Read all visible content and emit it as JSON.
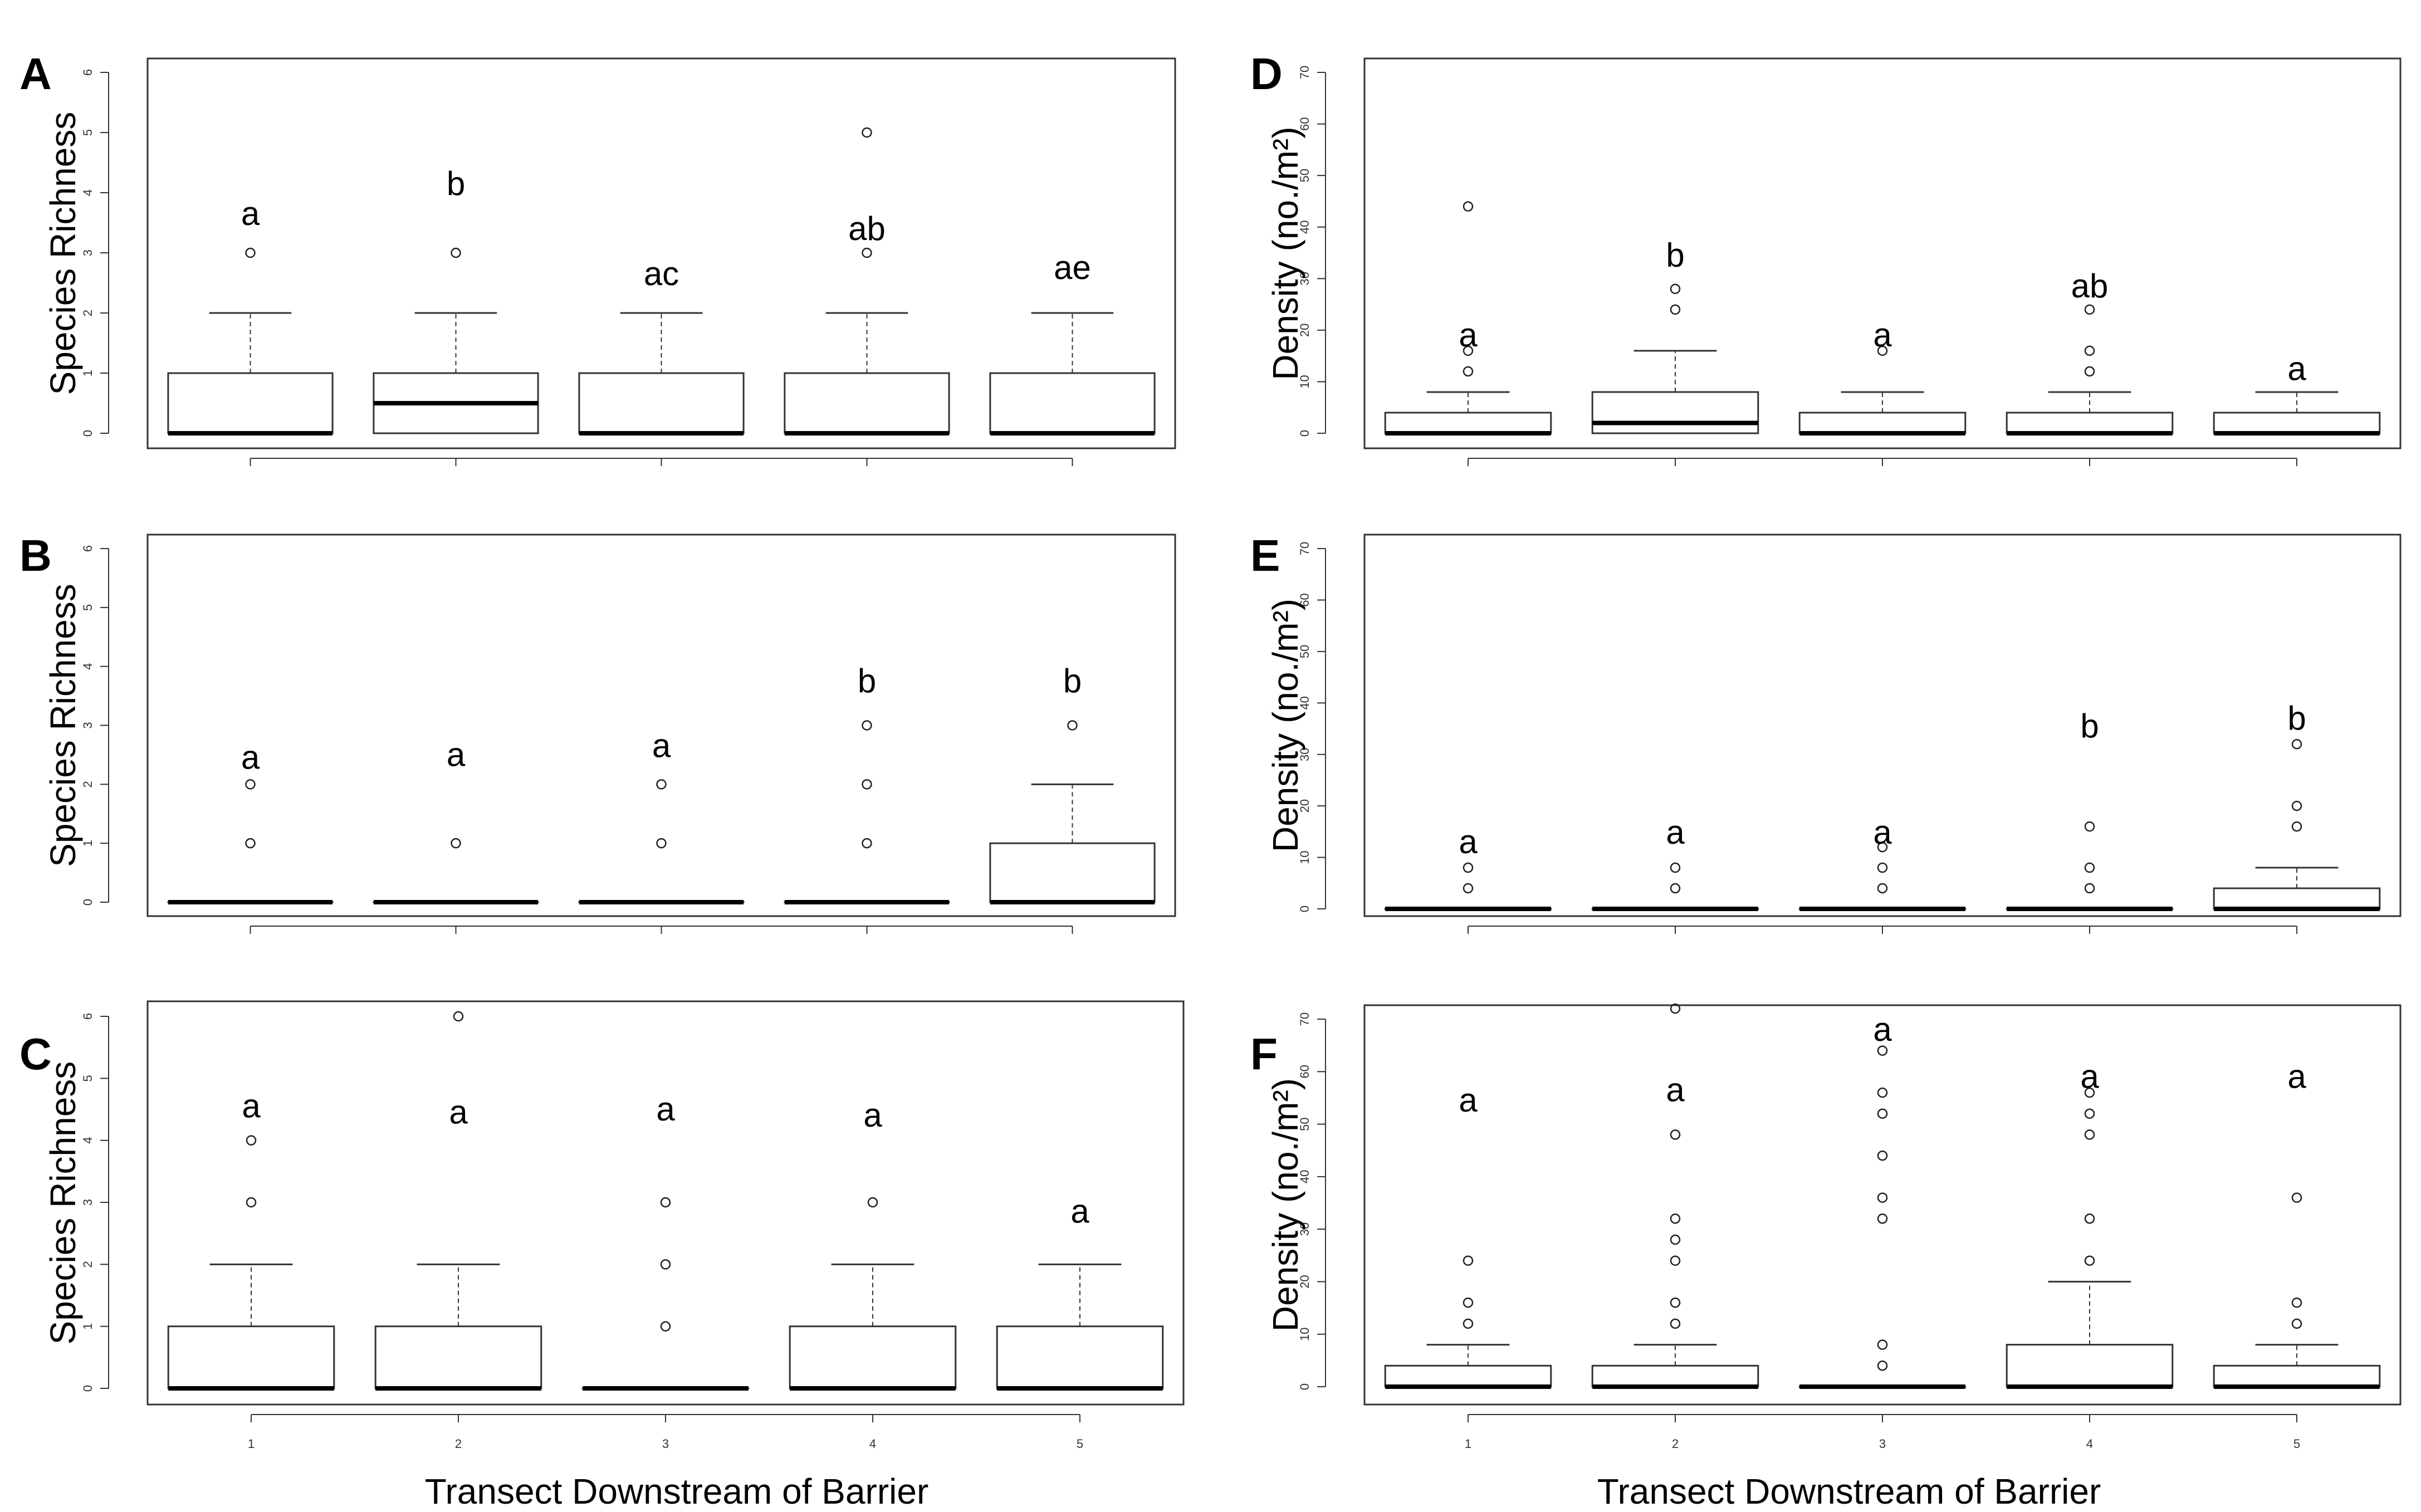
{
  "figure": {
    "x_axis_label_left": "Transect Downstream of Barrier",
    "x_axis_label_right": "Transect Downstream of Barrier"
  },
  "chart_data": [
    {
      "panel": "A",
      "type": "box",
      "ylabel": "Species Richness",
      "xlabel": "",
      "ylim": [
        0,
        6
      ],
      "yticks": [
        0,
        1,
        2,
        3,
        4,
        5,
        6
      ],
      "categories": [
        "1",
        "2",
        "3",
        "4",
        "5"
      ],
      "show_xtick_labels": false,
      "boxes": [
        {
          "min": 0,
          "q1": 0,
          "median": 0,
          "q3": 1,
          "max": 2,
          "outliers": [
            3
          ],
          "letter": "a",
          "letter_y": 3.65
        },
        {
          "min": 0,
          "q1": 0,
          "median": 0.5,
          "q3": 1,
          "max": 2,
          "outliers": [
            3
          ],
          "letter": "b",
          "letter_y": 4.15
        },
        {
          "min": 0,
          "q1": 0,
          "median": 0,
          "q3": 1,
          "max": 2,
          "outliers": [],
          "letter": "ac",
          "letter_y": 2.65
        },
        {
          "min": 0,
          "q1": 0,
          "median": 0,
          "q3": 1,
          "max": 2,
          "outliers": [
            3,
            5
          ],
          "letter": "ab",
          "letter_y": 3.4
        },
        {
          "min": 0,
          "q1": 0,
          "median": 0,
          "q3": 1,
          "max": 2,
          "outliers": [],
          "letter": "ae",
          "letter_y": 2.75
        }
      ]
    },
    {
      "panel": "B",
      "type": "box",
      "ylabel": "Species Richness",
      "xlabel": "",
      "ylim": [
        0,
        6
      ],
      "yticks": [
        0,
        1,
        2,
        3,
        4,
        5,
        6
      ],
      "categories": [
        "1",
        "2",
        "3",
        "4",
        "5"
      ],
      "show_xtick_labels": false,
      "boxes": [
        {
          "min": 0,
          "q1": 0,
          "median": 0,
          "q3": 0,
          "max": 0,
          "outliers": [
            1,
            2
          ],
          "letter": "a",
          "letter_y": 2.45
        },
        {
          "min": 0,
          "q1": 0,
          "median": 0,
          "q3": 0,
          "max": 0,
          "outliers": [
            1
          ],
          "letter": "a",
          "letter_y": 2.5
        },
        {
          "min": 0,
          "q1": 0,
          "median": 0,
          "q3": 0,
          "max": 0,
          "outliers": [
            1,
            2
          ],
          "letter": "a",
          "letter_y": 2.65
        },
        {
          "min": 0,
          "q1": 0,
          "median": 0,
          "q3": 0,
          "max": 0,
          "outliers": [
            1,
            2,
            3
          ],
          "letter": "b",
          "letter_y": 3.75
        },
        {
          "min": 0,
          "q1": 0,
          "median": 0,
          "q3": 1,
          "max": 2,
          "outliers": [
            3
          ],
          "letter": "b",
          "letter_y": 3.75
        }
      ]
    },
    {
      "panel": "C",
      "type": "box",
      "ylabel": "Species Richness",
      "xlabel": "",
      "ylim": [
        0,
        6
      ],
      "yticks": [
        0,
        1,
        2,
        3,
        4,
        5,
        6
      ],
      "categories": [
        "1",
        "2",
        "3",
        "4",
        "5"
      ],
      "show_xtick_labels": true,
      "boxes": [
        {
          "min": 0,
          "q1": 0,
          "median": 0,
          "q3": 1,
          "max": 2,
          "outliers": [
            3,
            4
          ],
          "letter": "a",
          "letter_y": 4.55
        },
        {
          "min": 0,
          "q1": 0,
          "median": 0,
          "q3": 1,
          "max": 2,
          "outliers": [
            6
          ],
          "letter": "a",
          "letter_y": 4.45
        },
        {
          "min": 0,
          "q1": 0,
          "median": 0,
          "q3": 0,
          "max": 0,
          "outliers": [
            1,
            2,
            3
          ],
          "letter": "a",
          "letter_y": 4.5
        },
        {
          "min": 0,
          "q1": 0,
          "median": 0,
          "q3": 1,
          "max": 2,
          "outliers": [
            3
          ],
          "letter": "a",
          "letter_y": 4.4
        },
        {
          "min": 0,
          "q1": 0,
          "median": 0,
          "q3": 1,
          "max": 2,
          "outliers": [],
          "letter": "a",
          "letter_y": 2.85
        }
      ]
    },
    {
      "panel": "D",
      "type": "box",
      "ylabel": "Density (no./m²)",
      "xlabel": "",
      "ylim": [
        0,
        70
      ],
      "yticks": [
        0,
        10,
        20,
        30,
        40,
        50,
        60,
        70
      ],
      "categories": [
        "1",
        "2",
        "3",
        "4",
        "5"
      ],
      "show_xtick_labels": false,
      "boxes": [
        {
          "min": 0,
          "q1": 0,
          "median": 0,
          "q3": 4,
          "max": 8,
          "outliers": [
            12,
            16,
            44
          ],
          "letter": "a",
          "letter_y": 19
        },
        {
          "min": 0,
          "q1": 0,
          "median": 2,
          "q3": 8,
          "max": 16,
          "outliers": [
            24,
            28
          ],
          "letter": "b",
          "letter_y": 34.5
        },
        {
          "min": 0,
          "q1": 0,
          "median": 0,
          "q3": 4,
          "max": 8,
          "outliers": [
            16
          ],
          "letter": "a",
          "letter_y": 19
        },
        {
          "min": 0,
          "q1": 0,
          "median": 0,
          "q3": 4,
          "max": 8,
          "outliers": [
            12,
            16,
            24
          ],
          "letter": "ab",
          "letter_y": 28.5
        },
        {
          "min": 0,
          "q1": 0,
          "median": 0,
          "q3": 4,
          "max": 8,
          "outliers": [],
          "letter": "a",
          "letter_y": 12.5
        }
      ]
    },
    {
      "panel": "E",
      "type": "box",
      "ylabel": "Density (no./m²)",
      "xlabel": "",
      "ylim": [
        0,
        70
      ],
      "yticks": [
        0,
        10,
        20,
        30,
        40,
        50,
        60,
        70
      ],
      "categories": [
        "1",
        "2",
        "3",
        "4",
        "5"
      ],
      "show_xtick_labels": false,
      "boxes": [
        {
          "min": 0,
          "q1": 0,
          "median": 0,
          "q3": 0,
          "max": 0,
          "outliers": [
            4,
            8
          ],
          "letter": "a",
          "letter_y": 13
        },
        {
          "min": 0,
          "q1": 0,
          "median": 0,
          "q3": 0,
          "max": 0,
          "outliers": [
            4,
            8
          ],
          "letter": "a",
          "letter_y": 14.8
        },
        {
          "min": 0,
          "q1": 0,
          "median": 0,
          "q3": 0,
          "max": 0,
          "outliers": [
            4,
            8,
            12
          ],
          "letter": "a",
          "letter_y": 14.8
        },
        {
          "min": 0,
          "q1": 0,
          "median": 0,
          "q3": 0,
          "max": 0,
          "outliers": [
            4,
            8,
            16
          ],
          "letter": "b",
          "letter_y": 35.5
        },
        {
          "min": 0,
          "q1": 0,
          "median": 0,
          "q3": 4,
          "max": 8,
          "outliers": [
            16,
            20,
            32
          ],
          "letter": "b",
          "letter_y": 37
        }
      ]
    },
    {
      "panel": "F",
      "type": "box",
      "ylabel": "Density (no./m²)",
      "xlabel": "",
      "ylim": [
        0,
        70
      ],
      "yticks": [
        0,
        10,
        20,
        30,
        40,
        50,
        60,
        70
      ],
      "categories": [
        "1",
        "2",
        "3",
        "4",
        "5"
      ],
      "show_xtick_labels": true,
      "boxes": [
        {
          "min": 0,
          "q1": 0,
          "median": 0,
          "q3": 4,
          "max": 8,
          "outliers": [
            12,
            16,
            24
          ],
          "letter": "a",
          "letter_y": 54.5
        },
        {
          "min": 0,
          "q1": 0,
          "median": 0,
          "q3": 4,
          "max": 8,
          "outliers": [
            12,
            16,
            24,
            28,
            32,
            48,
            72
          ],
          "letter": "a",
          "letter_y": 56.5
        },
        {
          "min": 0,
          "q1": 0,
          "median": 0,
          "q3": 0,
          "max": 0,
          "outliers": [
            4,
            8,
            32,
            36,
            44,
            52,
            56,
            64
          ],
          "letter": "a",
          "letter_y": 68
        },
        {
          "min": 0,
          "q1": 0,
          "median": 0,
          "q3": 8,
          "max": 20,
          "outliers": [
            24,
            32,
            48,
            52,
            56
          ],
          "letter": "a",
          "letter_y": 59
        },
        {
          "min": 0,
          "q1": 0,
          "median": 0,
          "q3": 4,
          "max": 8,
          "outliers": [
            12,
            16,
            36
          ],
          "letter": "a",
          "letter_y": 59
        }
      ]
    }
  ]
}
